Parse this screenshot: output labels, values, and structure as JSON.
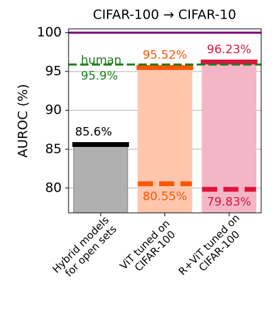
{
  "chart_data": {
    "type": "bar",
    "title": "CIFAR-100 → CIFAR-10",
    "y_label": "AUROC (%)",
    "categories": [
      "Hybrid models\nfor open sets",
      "ViT tuned on\nCIFAR-100",
      "R+ViT tuned on\nCIFAR-100"
    ],
    "values": [
      85.6,
      95.52,
      96.23
    ],
    "value_labels": [
      "85.6%",
      "95.52%",
      "96.23%"
    ],
    "low_values": [
      null,
      80.55,
      79.83
    ],
    "low_value_labels": [
      null,
      "80.55%",
      "79.83%"
    ],
    "colors": [
      "#000000",
      "#ff5500",
      "#dc143c"
    ],
    "fills": [
      "#b0b0b0",
      "#ffc6ad",
      "#f4b6c6"
    ],
    "human": {
      "label": "human",
      "value": 95.9,
      "value_label": "95.9%",
      "color": "#1a7f1a"
    },
    "perfect": {
      "value": 100,
      "color": "#800080"
    },
    "ylim": [
      76.8,
      100.5
    ],
    "yticks": [
      80,
      85,
      90,
      95,
      100
    ],
    "grid": true
  }
}
